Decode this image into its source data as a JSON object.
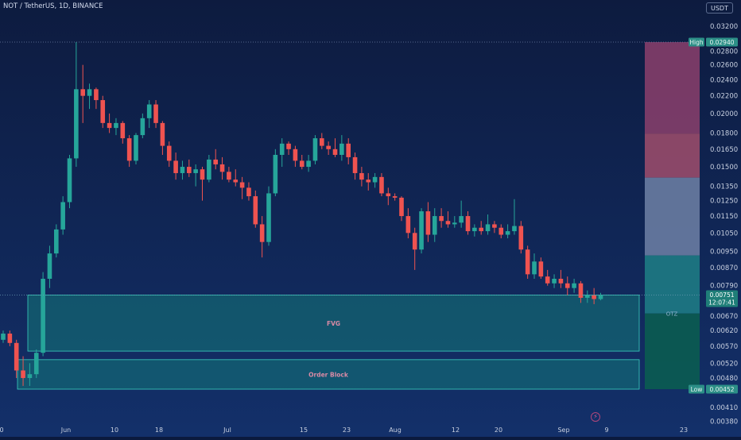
{
  "header": {
    "symbol_label": "NOT / TetherUS, 1D, BINANCE",
    "currency_badge": "USDT"
  },
  "colors": {
    "background_top": "#0d1b3f",
    "background_bottom": "#11285a",
    "up_candle": "#26a69a",
    "down_candle": "#ef5350",
    "zone_fill": "#138a7e",
    "zone_border": "#3ad0bf",
    "axis_text": "#c8d0e0"
  },
  "chart_data": {
    "type": "candlestick",
    "x_tick_labels": [
      "0",
      "Jun",
      "10",
      "18",
      "Jul",
      "15",
      "23",
      "Aug",
      "12",
      "20",
      "Sep",
      "9",
      "23"
    ],
    "y_tick_labels": [
      "0.03200",
      "0.02800",
      "0.02600",
      "0.02400",
      "0.02200",
      "0.02000",
      "0.01800",
      "0.01650",
      "0.01500",
      "0.01350",
      "0.01250",
      "0.01150",
      "0.01050",
      "0.00950",
      "0.00870",
      "0.00790",
      "0.00670",
      "0.00620",
      "0.00570",
      "0.00520",
      "0.00480",
      "0.00410",
      "0.00380"
    ],
    "y_scale": "log",
    "y_range": [
      0.0038,
      0.0335
    ],
    "high_marker": {
      "label": "High",
      "value": "0.02940"
    },
    "low_marker": {
      "label": "Low",
      "value": "0.00452"
    },
    "last_price": {
      "value": "0.00751",
      "countdown": "12:07:41"
    },
    "annotations": [
      {
        "label": "FVG",
        "top": 0.00751,
        "bottom": 0.00555
      },
      {
        "label": "Order Block",
        "top": 0.0053,
        "bottom": 0.00452
      },
      {
        "label": "OTZ",
        "value": 0.0068
      }
    ],
    "fib_zones": [
      {
        "top": 0.0294,
        "bottom": 0.01795,
        "color": "#8b3f6c"
      },
      {
        "top": 0.01795,
        "bottom": 0.01415,
        "color": "#a04d6c"
      },
      {
        "top": 0.01415,
        "bottom": 0.0093,
        "color": "#6f81a6"
      },
      {
        "top": 0.0093,
        "bottom": 0.0068,
        "color": "#1f7f86"
      },
      {
        "top": 0.0068,
        "bottom": 0.00452,
        "color": "#0a5f50"
      }
    ],
    "candles": [
      [
        0.0059,
        0.0062,
        0.0058,
        0.0061
      ],
      [
        0.0061,
        0.0062,
        0.0057,
        0.0058
      ],
      [
        0.0058,
        0.0059,
        0.0048,
        0.005
      ],
      [
        0.005,
        0.0054,
        0.0046,
        0.0048
      ],
      [
        0.0048,
        0.0052,
        0.0046,
        0.0049
      ],
      [
        0.0049,
        0.0056,
        0.0048,
        0.0055
      ],
      [
        0.0055,
        0.0085,
        0.0054,
        0.0082
      ],
      [
        0.0082,
        0.0098,
        0.0078,
        0.0094
      ],
      [
        0.0094,
        0.011,
        0.0092,
        0.0107
      ],
      [
        0.0107,
        0.0128,
        0.0104,
        0.0124
      ],
      [
        0.0124,
        0.016,
        0.012,
        0.0157
      ],
      [
        0.0157,
        0.0294,
        0.015,
        0.0228
      ],
      [
        0.0228,
        0.026,
        0.019,
        0.022
      ],
      [
        0.022,
        0.0235,
        0.0205,
        0.0228
      ],
      [
        0.0228,
        0.023,
        0.0205,
        0.0215
      ],
      [
        0.0215,
        0.022,
        0.0185,
        0.019
      ],
      [
        0.019,
        0.02,
        0.018,
        0.0185
      ],
      [
        0.0185,
        0.0195,
        0.0178,
        0.019
      ],
      [
        0.019,
        0.0192,
        0.017,
        0.0175
      ],
      [
        0.0175,
        0.0178,
        0.015,
        0.0155
      ],
      [
        0.0155,
        0.018,
        0.0152,
        0.0178
      ],
      [
        0.0178,
        0.02,
        0.0175,
        0.0195
      ],
      [
        0.0195,
        0.0215,
        0.0185,
        0.021
      ],
      [
        0.021,
        0.0215,
        0.0185,
        0.019
      ],
      [
        0.019,
        0.0192,
        0.016,
        0.0168
      ],
      [
        0.0168,
        0.0172,
        0.015,
        0.0155
      ],
      [
        0.0155,
        0.0162,
        0.014,
        0.0145
      ],
      [
        0.0145,
        0.0155,
        0.014,
        0.015
      ],
      [
        0.015,
        0.0156,
        0.0142,
        0.0145
      ],
      [
        0.0145,
        0.0152,
        0.0135,
        0.0148
      ],
      [
        0.0148,
        0.015,
        0.0125,
        0.014
      ],
      [
        0.014,
        0.016,
        0.0138,
        0.0156
      ],
      [
        0.0156,
        0.0165,
        0.0148,
        0.0152
      ],
      [
        0.0152,
        0.0158,
        0.014,
        0.0146
      ],
      [
        0.0146,
        0.015,
        0.0138,
        0.014
      ],
      [
        0.014,
        0.0148,
        0.0135,
        0.0138
      ],
      [
        0.0138,
        0.0142,
        0.0126,
        0.0134
      ],
      [
        0.0134,
        0.0138,
        0.0125,
        0.0128
      ],
      [
        0.0128,
        0.0132,
        0.0108,
        0.011
      ],
      [
        0.011,
        0.0115,
        0.0092,
        0.01
      ],
      [
        0.01,
        0.0135,
        0.0098,
        0.013
      ],
      [
        0.013,
        0.0165,
        0.0128,
        0.016
      ],
      [
        0.016,
        0.0175,
        0.015,
        0.017
      ],
      [
        0.017,
        0.0172,
        0.016,
        0.0165
      ],
      [
        0.0165,
        0.0168,
        0.015,
        0.0155
      ],
      [
        0.0155,
        0.016,
        0.0148,
        0.015
      ],
      [
        0.015,
        0.016,
        0.0146,
        0.0155
      ],
      [
        0.0155,
        0.0178,
        0.0152,
        0.0175
      ],
      [
        0.0175,
        0.018,
        0.0165,
        0.0168
      ],
      [
        0.0168,
        0.0172,
        0.016,
        0.0165
      ],
      [
        0.0165,
        0.0175,
        0.0158,
        0.016
      ],
      [
        0.016,
        0.0178,
        0.0155,
        0.017
      ],
      [
        0.017,
        0.0175,
        0.0152,
        0.0158
      ],
      [
        0.0158,
        0.0162,
        0.014,
        0.0145
      ],
      [
        0.0145,
        0.015,
        0.0135,
        0.014
      ],
      [
        0.014,
        0.0145,
        0.0132,
        0.0138
      ],
      [
        0.0138,
        0.0145,
        0.0134,
        0.0142
      ],
      [
        0.0142,
        0.0145,
        0.0128,
        0.013
      ],
      [
        0.013,
        0.0134,
        0.0122,
        0.0128
      ],
      [
        0.0128,
        0.013,
        0.0125,
        0.0127
      ],
      [
        0.0127,
        0.0128,
        0.0112,
        0.0115
      ],
      [
        0.0115,
        0.012,
        0.0102,
        0.0105
      ],
      [
        0.0105,
        0.0108,
        0.0086,
        0.0096
      ],
      [
        0.0096,
        0.012,
        0.0094,
        0.0118
      ],
      [
        0.0118,
        0.0124,
        0.01,
        0.0104
      ],
      [
        0.0104,
        0.012,
        0.01,
        0.0115
      ],
      [
        0.0115,
        0.012,
        0.0108,
        0.0112
      ],
      [
        0.0112,
        0.0118,
        0.0108,
        0.011
      ],
      [
        0.011,
        0.0115,
        0.0108,
        0.0111
      ],
      [
        0.0111,
        0.0125,
        0.0108,
        0.0115
      ],
      [
        0.0115,
        0.0118,
        0.0104,
        0.0106
      ],
      [
        0.0106,
        0.011,
        0.0103,
        0.0108
      ],
      [
        0.0108,
        0.0112,
        0.0104,
        0.0106
      ],
      [
        0.0106,
        0.0116,
        0.0104,
        0.011
      ],
      [
        0.011,
        0.0112,
        0.0105,
        0.0108
      ],
      [
        0.0108,
        0.011,
        0.0102,
        0.0104
      ],
      [
        0.0104,
        0.011,
        0.0102,
        0.0106
      ],
      [
        0.0106,
        0.0126,
        0.0104,
        0.0109
      ],
      [
        0.0109,
        0.0112,
        0.0094,
        0.0096
      ],
      [
        0.0096,
        0.0098,
        0.0082,
        0.0084
      ],
      [
        0.0084,
        0.0094,
        0.0082,
        0.009
      ],
      [
        0.009,
        0.0092,
        0.0082,
        0.0083
      ],
      [
        0.0083,
        0.0086,
        0.0079,
        0.008
      ],
      [
        0.008,
        0.0084,
        0.0078,
        0.0082
      ],
      [
        0.0082,
        0.0086,
        0.0078,
        0.008
      ],
      [
        0.008,
        0.0083,
        0.0075,
        0.0078
      ],
      [
        0.0078,
        0.0082,
        0.0076,
        0.008
      ],
      [
        0.008,
        0.0081,
        0.0072,
        0.0074
      ],
      [
        0.0074,
        0.0077,
        0.0072,
        0.0075
      ],
      [
        0.0075,
        0.0078,
        0.00715,
        0.00735
      ],
      [
        0.00735,
        0.0076,
        0.0073,
        0.00751
      ]
    ]
  }
}
